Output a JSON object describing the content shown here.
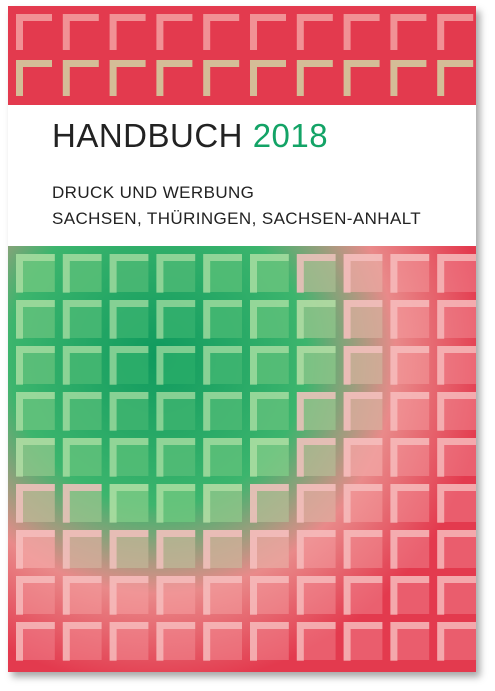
{
  "cover": {
    "title_word": "HANDBUCH",
    "title_year": "2018",
    "subtitle_line1": "DRUCK UND WERBUNG",
    "subtitle_line2": "SACHSEN, THÜRINGEN, SACHSEN-ANHALT",
    "colors": {
      "background_red": "#e33a4e",
      "accent_green": "#13a366",
      "pattern_light": "#f5a3a3",
      "pattern_pale_green": "#b9e0a4"
    }
  }
}
